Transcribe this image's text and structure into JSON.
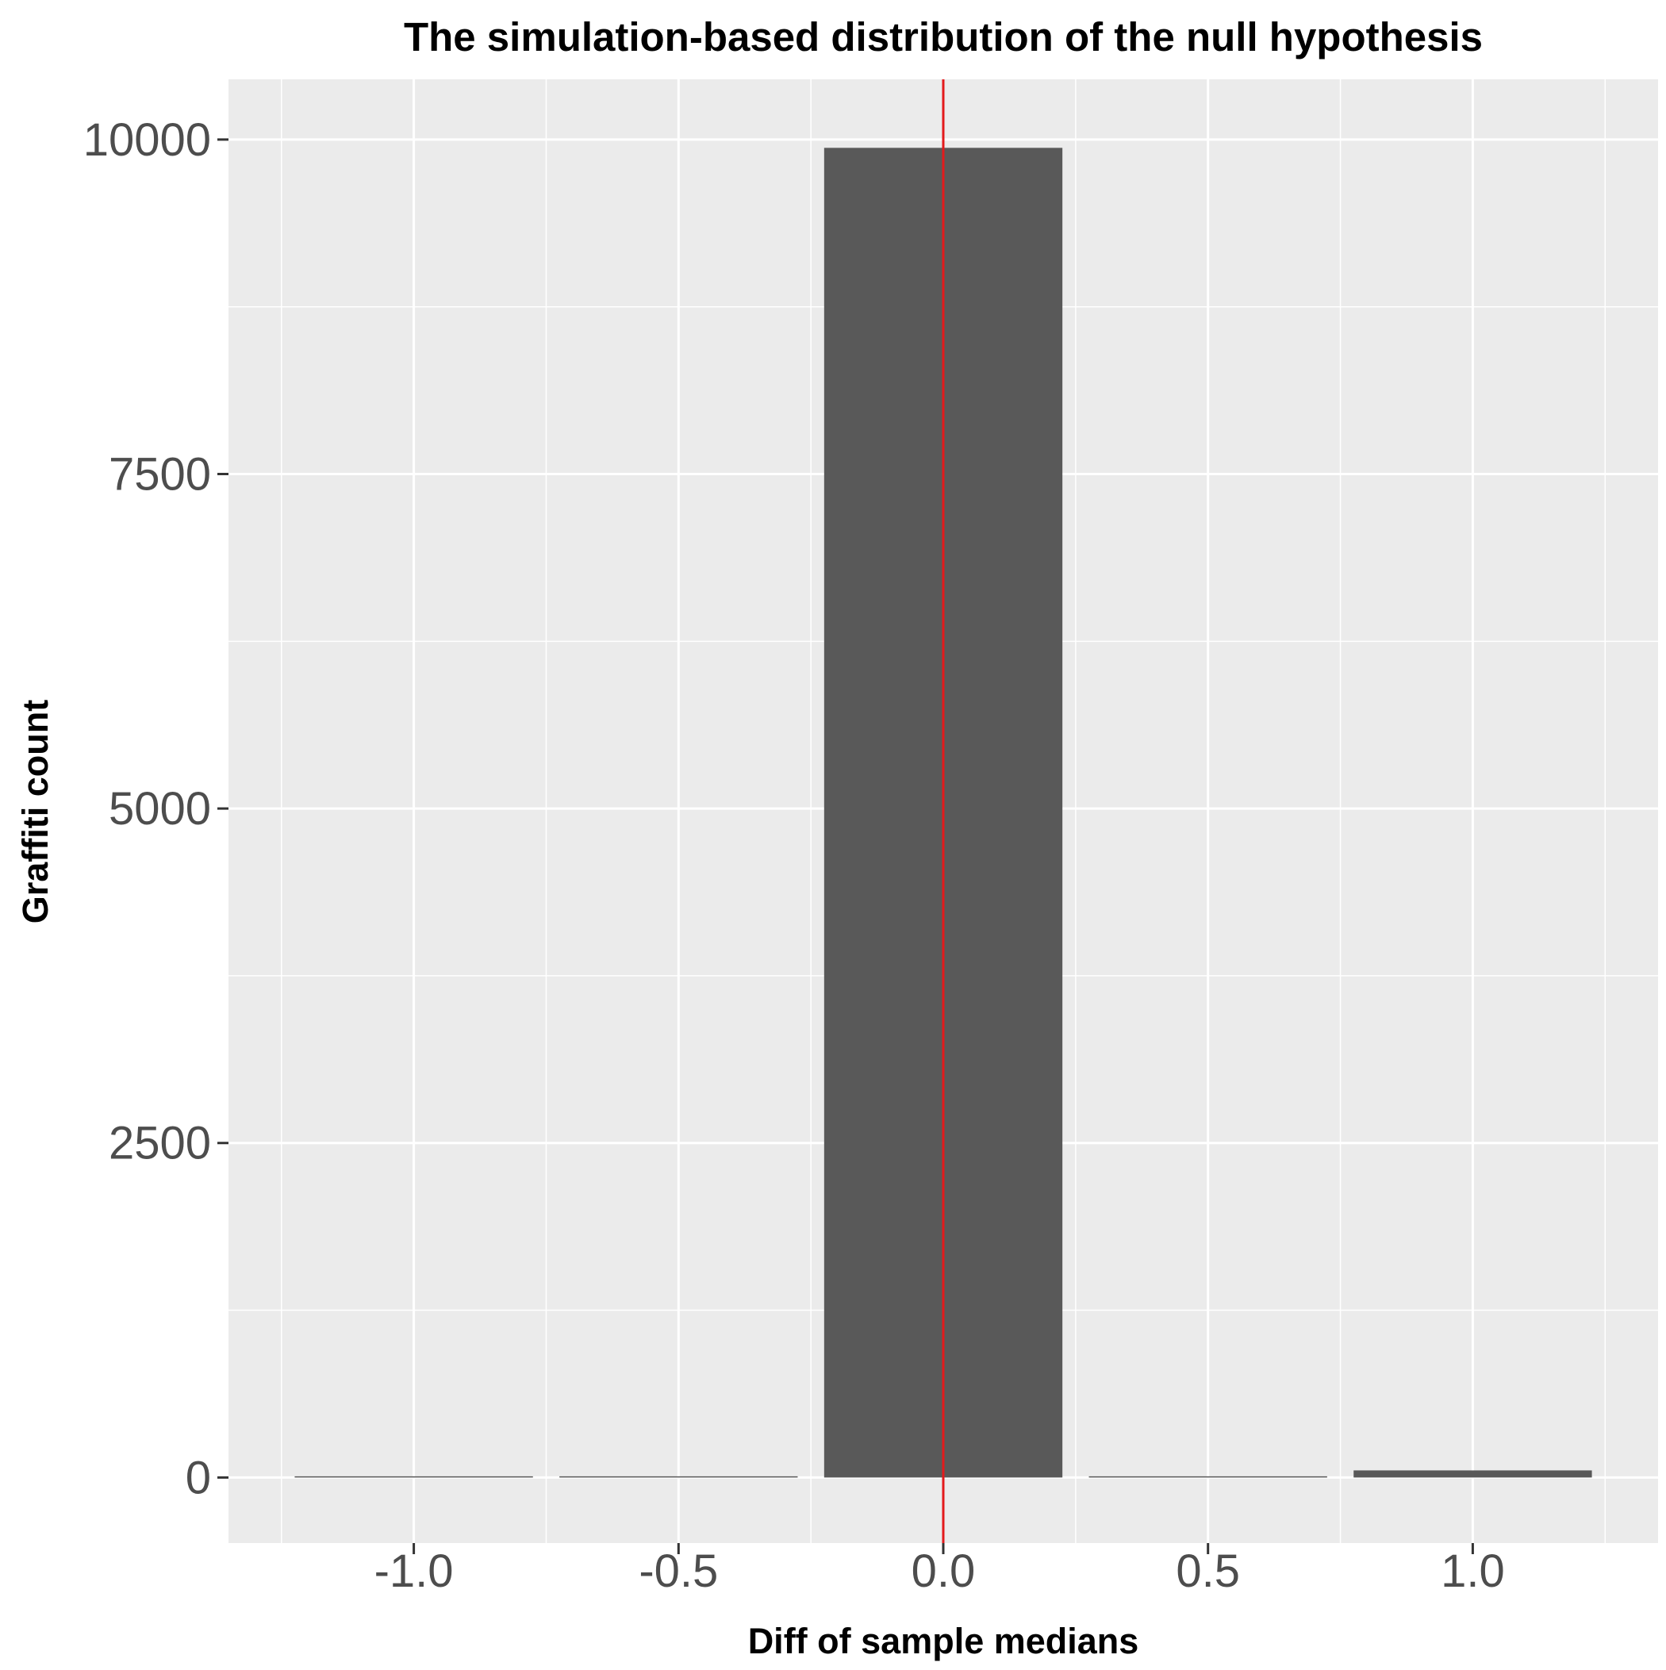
{
  "chart_data": {
    "type": "bar",
    "title": "The simulation-based distribution of the null hypothesis",
    "xlabel": "Diff of sample medians",
    "ylabel": "Graffiti count",
    "x": [
      -1.0,
      -0.5,
      0.0,
      0.5,
      1.0
    ],
    "values": [
      6,
      3,
      9938,
      0,
      53
    ],
    "bin_width": 0.45,
    "xlim": [
      -1.35,
      1.35
    ],
    "ylim": [
      -490,
      10450
    ],
    "x_ticks": [
      -1.0,
      -0.5,
      0.0,
      0.5,
      1.0
    ],
    "x_tick_labels": [
      "-1.0",
      "-0.5",
      "0.0",
      "0.5",
      "1.0"
    ],
    "y_ticks": [
      0,
      2500,
      5000,
      7500,
      10000
    ],
    "y_tick_labels": [
      "0",
      "2500",
      "5000",
      "7500",
      "10000"
    ],
    "reference_line": {
      "x": 0.0,
      "color": "#e31a1c"
    },
    "bar_color": "#595959",
    "panel_background": "#ebebeb",
    "grid": true,
    "legend": "none"
  }
}
